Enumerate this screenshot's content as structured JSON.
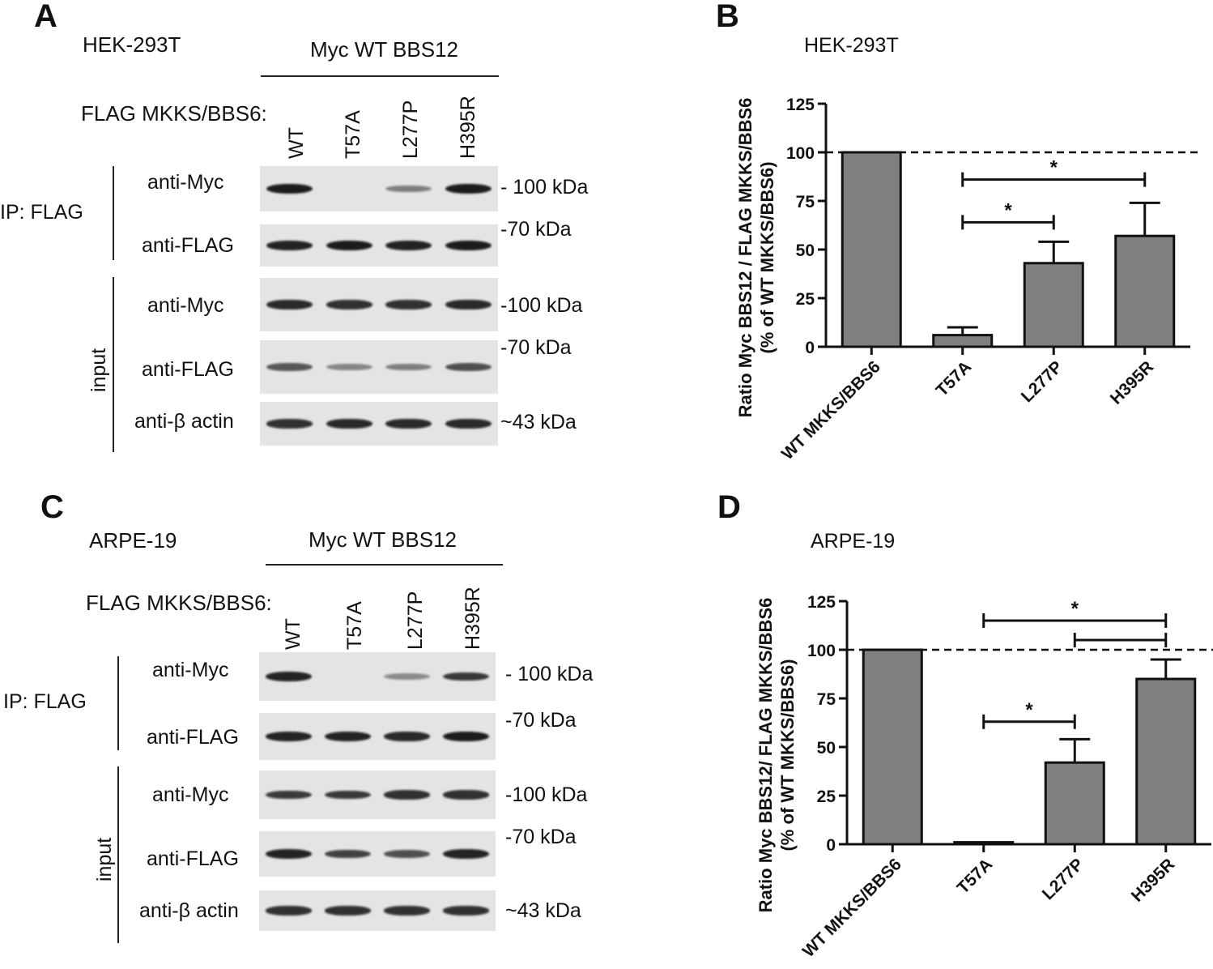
{
  "panels": {
    "A": {
      "letter": "A",
      "cell_line": "HEK-293T",
      "myc_header": "Myc WT BBS12",
      "flag_header": "FLAG MKKS/BBS6:",
      "lanes": [
        "WT",
        "T57A",
        "L277P",
        "H395R"
      ],
      "ip_label": "IP: FLAG",
      "input_label": "input",
      "blot_rows": [
        "anti-Myc",
        "anti-FLAG",
        "anti-Myc",
        "anti-FLAG",
        "anti-β actin"
      ],
      "markers": [
        "- 100 kDa",
        "-70 kDa",
        "-100 kDa",
        "-70 kDa",
        "~43 kDa"
      ],
      "band_intensity": [
        [
          1.0,
          0.0,
          0.35,
          1.0
        ],
        [
          0.95,
          1.0,
          0.95,
          1.0
        ],
        [
          0.9,
          0.85,
          0.85,
          0.9
        ],
        [
          0.6,
          0.3,
          0.35,
          0.65
        ],
        [
          0.85,
          0.9,
          0.9,
          0.9
        ]
      ]
    },
    "C": {
      "letter": "C",
      "cell_line": "ARPE-19",
      "myc_header": "Myc WT BBS12",
      "flag_header": "FLAG MKKS/BBS6:",
      "lanes": [
        "WT",
        "T57A",
        "L277P",
        "H395R"
      ],
      "ip_label": "IP: FLAG",
      "input_label": "input",
      "blot_rows": [
        "anti-Myc",
        "anti-FLAG",
        "anti-Myc",
        "anti-FLAG",
        "anti-β actin"
      ],
      "markers": [
        "- 100 kDa",
        "-70 kDa",
        "-100 kDa",
        "-70 kDa",
        "~43 kDa"
      ],
      "band_intensity": [
        [
          0.95,
          0.0,
          0.25,
          0.8
        ],
        [
          0.95,
          0.95,
          0.9,
          1.0
        ],
        [
          0.8,
          0.8,
          0.85,
          0.85
        ],
        [
          0.95,
          0.75,
          0.65,
          0.95
        ],
        [
          0.85,
          0.85,
          0.85,
          0.85
        ]
      ]
    }
  },
  "chart_data": [
    {
      "panel": "B",
      "type": "bar",
      "subtitle": "HEK-293T",
      "categories": [
        "WT MKKS/BBS6",
        "T57A",
        "L277P",
        "H395R"
      ],
      "values": [
        100,
        6,
        43,
        57
      ],
      "errors": [
        0,
        4,
        11,
        17
      ],
      "ylabel": [
        "Ratio Myc BBS12 / FLAG MKKS/BBS6",
        "(% of WT MKKS/BBS6)"
      ],
      "ylim": [
        0,
        125
      ],
      "yticks": [
        0,
        25,
        50,
        75,
        100,
        125
      ],
      "reference_line": 100,
      "bar_color": "#808080",
      "significance": [
        {
          "from": "T57A",
          "to": "H395R",
          "level": 86,
          "label": "*"
        },
        {
          "from": "T57A",
          "to": "L277P",
          "level": 64,
          "label": "*"
        }
      ]
    },
    {
      "panel": "D",
      "type": "bar",
      "subtitle": "ARPE-19",
      "categories": [
        "WT MKKS/BBS6",
        "T57A",
        "L277P",
        "H395R"
      ],
      "values": [
        100,
        1,
        42,
        85
      ],
      "errors": [
        0,
        0,
        12,
        10
      ],
      "ylabel": [
        "Ratio Myc BBS12/ FLAG MKKS/BBS6",
        "(% of WT MKKS/BBS6)"
      ],
      "ylim": [
        0,
        125
      ],
      "yticks": [
        0,
        25,
        50,
        75,
        100,
        125
      ],
      "reference_line": 100,
      "bar_color": "#808080",
      "significance": [
        {
          "from": "T57A",
          "to": "H395R",
          "level": 115,
          "label": "*"
        },
        {
          "from": "L277P",
          "to": "H395R",
          "level": 105,
          "label": ""
        },
        {
          "from": "T57A",
          "to": "L277P",
          "level": 63,
          "label": "*"
        }
      ]
    }
  ]
}
